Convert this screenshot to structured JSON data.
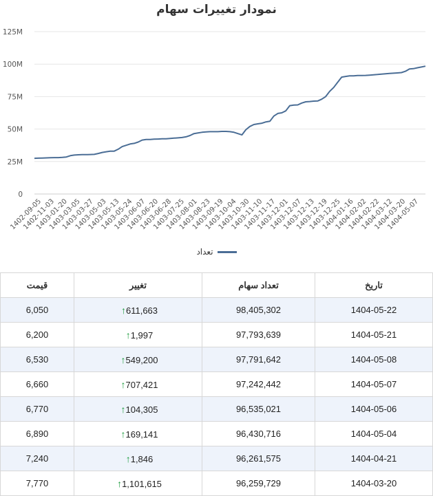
{
  "chart": {
    "title": "نمودار تغییرات سهام",
    "legend_label": "تعداد"
  },
  "chart_data": {
    "type": "line",
    "title": "نمودار تغییرات سهام",
    "ylim": [
      0,
      125000000
    ],
    "y_ticks": [
      "0",
      "25M",
      "50M",
      "75M",
      "100M",
      "125M"
    ],
    "y_tick_values": [
      0,
      25000000,
      50000000,
      75000000,
      100000000,
      125000000
    ],
    "x_tick_labels": [
      "1402-09-05",
      "1402-11-03",
      "1403-01-20",
      "1403-03-05",
      "1403-03-27",
      "1403-05-03",
      "1403-05-13",
      "1403-05-24",
      "1403-06-07",
      "1403-06-20",
      "1403-06-28",
      "1403-07-25",
      "1403-08-01",
      "1403-08-23",
      "1403-09-19",
      "1403-10-04",
      "1403-10-30",
      "1403-11-10",
      "1403-11-17",
      "1403-12-01",
      "1403-12-07",
      "1403-12-13",
      "1403-12-19",
      "1403-12-25",
      "1404-01-16",
      "1404-02-02",
      "1404-02-22",
      "1404-03-12",
      "1404-03-20",
      "1404-05-07"
    ],
    "grid": true,
    "legend": "bottom",
    "color": "#4a6d95",
    "series": [
      {
        "name": "تعداد",
        "values": [
          27.5,
          27.6,
          27.7,
          27.8,
          27.9,
          28.0,
          28.0,
          28.2,
          28.5,
          29.5,
          30.0,
          30.2,
          30.3,
          30.3,
          30.4,
          30.5,
          31.2,
          32.0,
          32.5,
          33.0,
          33.0,
          34.5,
          36.5,
          37.5,
          38.5,
          39.0,
          40.0,
          41.5,
          42.0,
          42.0,
          42.2,
          42.3,
          42.5,
          42.5,
          42.8,
          43.0,
          43.2,
          43.5,
          44.0,
          45.0,
          46.5,
          47.0,
          47.5,
          47.8,
          48.0,
          48.0,
          48.0,
          48.2,
          48.2,
          48.0,
          47.5,
          46.5,
          45.5,
          49.5,
          52.0,
          53.5,
          54.0,
          54.5,
          55.5,
          56.0,
          60.0,
          62.0,
          62.5,
          64.0,
          68.0,
          68.5,
          68.6,
          70.0,
          71.0,
          71.2,
          71.5,
          71.6,
          73.0,
          75.0,
          79.0,
          82.0,
          86.0,
          90.0,
          90.5,
          91.0,
          91.0,
          91.2,
          91.2,
          91.3,
          91.5,
          91.8,
          92.0,
          92.3,
          92.6,
          92.8,
          93.0,
          93.2,
          93.5,
          94.5,
          96.3,
          96.5,
          97.2,
          97.8,
          98.4
        ]
      }
    ]
  },
  "table": {
    "headers": {
      "date": "تاریخ",
      "shares": "تعداد سهام",
      "change": "تغییر",
      "price": "قیمت"
    },
    "rows": [
      {
        "date": "1404-05-22",
        "shares": "98,405,302",
        "change": "611,663",
        "price": "6,050"
      },
      {
        "date": "1404-05-21",
        "shares": "97,793,639",
        "change": "1,997",
        "price": "6,200"
      },
      {
        "date": "1404-05-08",
        "shares": "97,791,642",
        "change": "549,200",
        "price": "6,530"
      },
      {
        "date": "1404-05-07",
        "shares": "97,242,442",
        "change": "707,421",
        "price": "6,660"
      },
      {
        "date": "1404-05-06",
        "shares": "96,535,021",
        "change": "104,305",
        "price": "6,770"
      },
      {
        "date": "1404-05-04",
        "shares": "96,430,716",
        "change": "169,141",
        "price": "6,890"
      },
      {
        "date": "1404-04-21",
        "shares": "96,261,575",
        "change": "1,846",
        "price": "7,240"
      },
      {
        "date": "1404-03-20",
        "shares": "96,259,729",
        "change": "1,101,615",
        "price": "7,770"
      }
    ],
    "change_icon": "up-arrow-icon",
    "change_icon_color": "#1a9b3c",
    "stripe_color": "#eef3fb"
  }
}
